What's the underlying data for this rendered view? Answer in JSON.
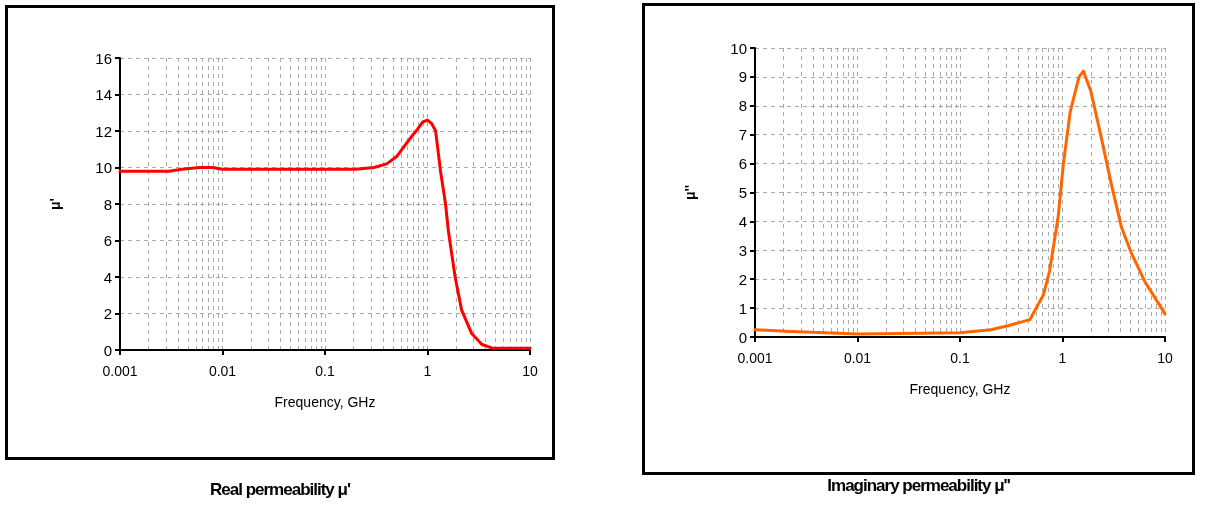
{
  "chart_data": [
    {
      "type": "line",
      "title": "Real permeability μ'",
      "xlabel": "Frequency, GHz",
      "ylabel": "μ'",
      "log": "x",
      "grid": true,
      "marker": "none",
      "line_style": "solid",
      "xlim": [
        0.001,
        10
      ],
      "xticks": [
        0.001,
        0.01,
        0.1,
        1,
        10
      ],
      "ylim": [
        0,
        16
      ],
      "yticks": [
        0,
        2,
        4,
        6,
        8,
        10,
        12,
        14,
        16
      ],
      "series": [
        {
          "color": "#ff0000",
          "x": [
            0.001,
            0.003,
            0.004,
            0.006,
            0.008,
            0.01,
            0.1,
            0.2,
            0.3,
            0.4,
            0.5,
            0.6,
            0.7,
            0.8,
            0.9,
            1.0,
            1.1,
            1.2,
            1.34,
            1.5,
            1.6,
            1.86,
            2.15,
            2.7,
            3.4,
            4.3,
            10
          ],
          "values": [
            9.8,
            9.8,
            9.9,
            10.0,
            10.0,
            9.9,
            9.9,
            9.9,
            10.0,
            10.2,
            10.6,
            11.2,
            11.7,
            12.1,
            12.5,
            12.6,
            12.4,
            12.0,
            9.8,
            8.0,
            6.5,
            4.0,
            2.2,
            0.9,
            0.3,
            0.1,
            0.1
          ]
        }
      ]
    },
    {
      "type": "line",
      "title": "Imaginary permeability μ''",
      "xlabel": "Frequency, GHz",
      "ylabel": "μ''",
      "log": "x",
      "grid": true,
      "marker": "none",
      "line_style": "solid",
      "xlim": [
        0.001,
        10
      ],
      "xticks": [
        0.001,
        0.01,
        0.1,
        1,
        10
      ],
      "ylim": [
        0,
        10
      ],
      "yticks": [
        0,
        1,
        2,
        3,
        4,
        5,
        6,
        7,
        8,
        9,
        10
      ],
      "series": [
        {
          "color": "#ff6600",
          "x": [
            0.001,
            0.002,
            0.01,
            0.1,
            0.2,
            0.3,
            0.48,
            0.65,
            0.75,
            0.91,
            1.02,
            1.19,
            1.45,
            1.6,
            1.89,
            2.29,
            2.99,
            3.76,
            4.7,
            6.4,
            10
          ],
          "values": [
            0.25,
            0.2,
            0.1,
            0.15,
            0.25,
            0.4,
            0.6,
            1.45,
            2.3,
            4.2,
            6.0,
            7.8,
            9.0,
            9.2,
            8.5,
            7.2,
            5.3,
            3.8,
            2.9,
            1.9,
            0.8
          ]
        }
      ]
    }
  ]
}
